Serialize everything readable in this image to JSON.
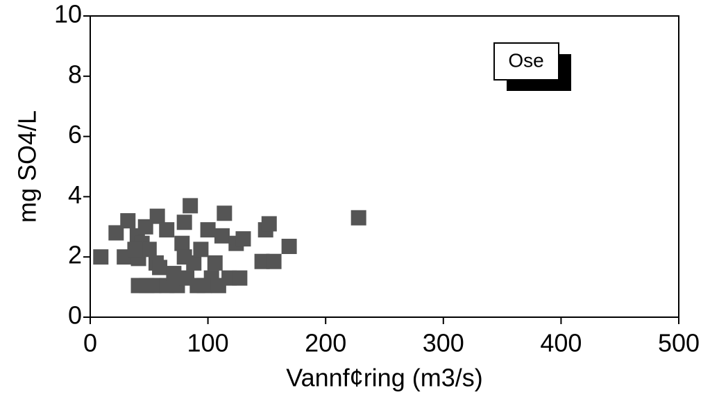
{
  "chart_data": {
    "type": "scatter",
    "x_label": "Vannf¢ring (m3/s)",
    "y_label": "mg SO4/L",
    "xlim": [
      0,
      500
    ],
    "xticks": [
      0,
      100,
      200,
      300,
      400,
      500
    ],
    "ylim": [
      0,
      10
    ],
    "yticks": [
      0,
      2,
      4,
      6,
      8,
      10
    ],
    "grid": false,
    "legend": "upper right",
    "series": [
      {
        "name": "Ose",
        "color": "#555555",
        "x": [
          9,
          22,
          32,
          29,
          41,
          40,
          57,
          48,
          54,
          44,
          50,
          56,
          59,
          65,
          80,
          85,
          78,
          74,
          82,
          88,
          94,
          100,
          103,
          106,
          112,
          114,
          118,
          124,
          127,
          130,
          97,
          109,
          149,
          152,
          146,
          156,
          169,
          228,
          65,
          71,
          91,
          41,
          80,
          47,
          38
        ],
        "values": [
          2.0,
          2.8,
          3.2,
          2.0,
          1.95,
          2.7,
          3.35,
          1.05,
          1.05,
          2.45,
          2.25,
          1.8,
          1.65,
          2.9,
          3.15,
          3.7,
          2.45,
          1.05,
          1.3,
          1.8,
          2.25,
          2.9,
          1.3,
          1.8,
          2.7,
          3.45,
          1.3,
          2.45,
          1.3,
          2.6,
          1.05,
          1.05,
          2.9,
          3.1,
          1.85,
          1.85,
          2.35,
          3.3,
          1.05,
          1.45,
          1.05,
          1.05,
          2.0,
          3.0,
          2.25
        ]
      }
    ]
  }
}
